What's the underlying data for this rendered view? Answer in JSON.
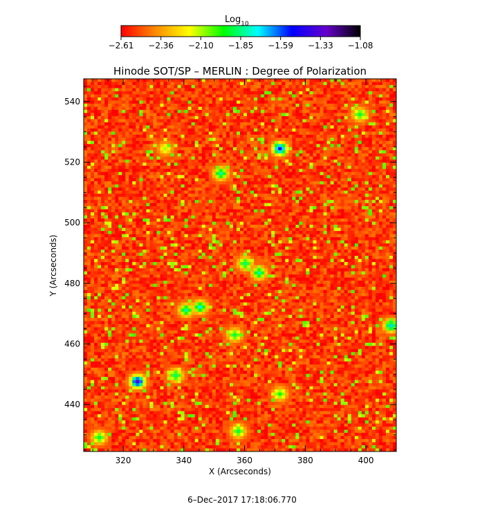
{
  "chart_data": {
    "type": "heatmap",
    "title": "Hinode SOT/SP – MERLIN : Degree of Polarization",
    "xlabel": "X (Arcseconds)",
    "ylabel": "Y (Arcseconds)",
    "xlim": [
      307,
      410
    ],
    "ylim": [
      424.5,
      547.5
    ],
    "x_ticks": [
      320,
      340,
      360,
      380,
      400
    ],
    "y_ticks": [
      440,
      460,
      480,
      500,
      520,
      540
    ],
    "colorbar": {
      "label": "Log",
      "label_sub": "10",
      "range": [
        -2.61,
        -1.08
      ],
      "ticks": [
        "−2.61",
        "−2.36",
        "−2.10",
        "−1.85",
        "−1.59",
        "−1.33",
        "−1.08"
      ],
      "colors": [
        "#ff0000",
        "#ff8a00",
        "#ffff00",
        "#00ff00",
        "#00ffff",
        "#0000ff",
        "#6600cc",
        "#000000"
      ]
    },
    "background_level": -2.5,
    "features": [
      {
        "x": 325,
        "y": 447.5,
        "level": -1.33
      },
      {
        "x": 372,
        "y": 524,
        "level": -1.45
      },
      {
        "x": 360,
        "y": 487,
        "level": -1.85
      },
      {
        "x": 365,
        "y": 483,
        "level": -1.8
      },
      {
        "x": 352,
        "y": 516,
        "level": -1.8
      },
      {
        "x": 345,
        "y": 472,
        "level": -1.75
      },
      {
        "x": 341,
        "y": 471,
        "level": -1.8
      },
      {
        "x": 337,
        "y": 450,
        "level": -1.85
      },
      {
        "x": 357,
        "y": 463,
        "level": -1.9
      },
      {
        "x": 408,
        "y": 466,
        "level": -1.7
      },
      {
        "x": 398,
        "y": 536,
        "level": -1.9
      },
      {
        "x": 312,
        "y": 429,
        "level": -1.9
      },
      {
        "x": 334,
        "y": 524,
        "level": -2.1
      },
      {
        "x": 358,
        "y": 431,
        "level": -1.9
      },
      {
        "x": 372,
        "y": 443,
        "level": -1.95
      }
    ]
  },
  "footer": {
    "date": "6–Dec–2017 17:18:06.770"
  }
}
